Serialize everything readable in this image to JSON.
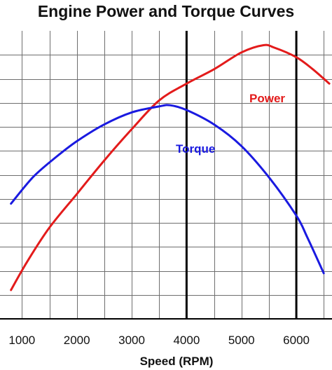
{
  "chart_data": {
    "type": "line",
    "title": "Engine Power and Torque Curves",
    "xlabel": "Speed (RPM)",
    "ylabel": "",
    "xlim": [
      600,
      6650
    ],
    "ylim": [
      0,
      12
    ],
    "x_ticks": [
      1000,
      2000,
      3000,
      4000,
      5000,
      6000
    ],
    "x_tick_labels": [
      "1000",
      "2000",
      "3000",
      "4000",
      "5000",
      "6000"
    ],
    "grid": true,
    "highlight_lines": [
      4000,
      6000
    ],
    "series": [
      {
        "name": "Power",
        "color": "#e31b1b",
        "points": [
          [
            800,
            1.2
          ],
          [
            1100,
            2.4
          ],
          [
            1500,
            3.8
          ],
          [
            2000,
            5.2
          ],
          [
            2500,
            6.6
          ],
          [
            3000,
            7.9
          ],
          [
            3500,
            9.1
          ],
          [
            4000,
            9.8
          ],
          [
            4500,
            10.4
          ],
          [
            5000,
            11.1
          ],
          [
            5400,
            11.4
          ],
          [
            5600,
            11.3
          ],
          [
            6000,
            10.9
          ],
          [
            6300,
            10.4
          ],
          [
            6600,
            9.8
          ]
        ]
      },
      {
        "name": "Torque",
        "color": "#1a1ae0",
        "points": [
          [
            800,
            4.8
          ],
          [
            1200,
            5.9
          ],
          [
            1600,
            6.7
          ],
          [
            2000,
            7.4
          ],
          [
            2500,
            8.1
          ],
          [
            3000,
            8.6
          ],
          [
            3500,
            8.85
          ],
          [
            3700,
            8.9
          ],
          [
            4000,
            8.7
          ],
          [
            4500,
            8.1
          ],
          [
            5000,
            7.2
          ],
          [
            5500,
            5.9
          ],
          [
            6000,
            4.3
          ],
          [
            6200,
            3.4
          ],
          [
            6500,
            1.9
          ]
        ]
      }
    ]
  }
}
